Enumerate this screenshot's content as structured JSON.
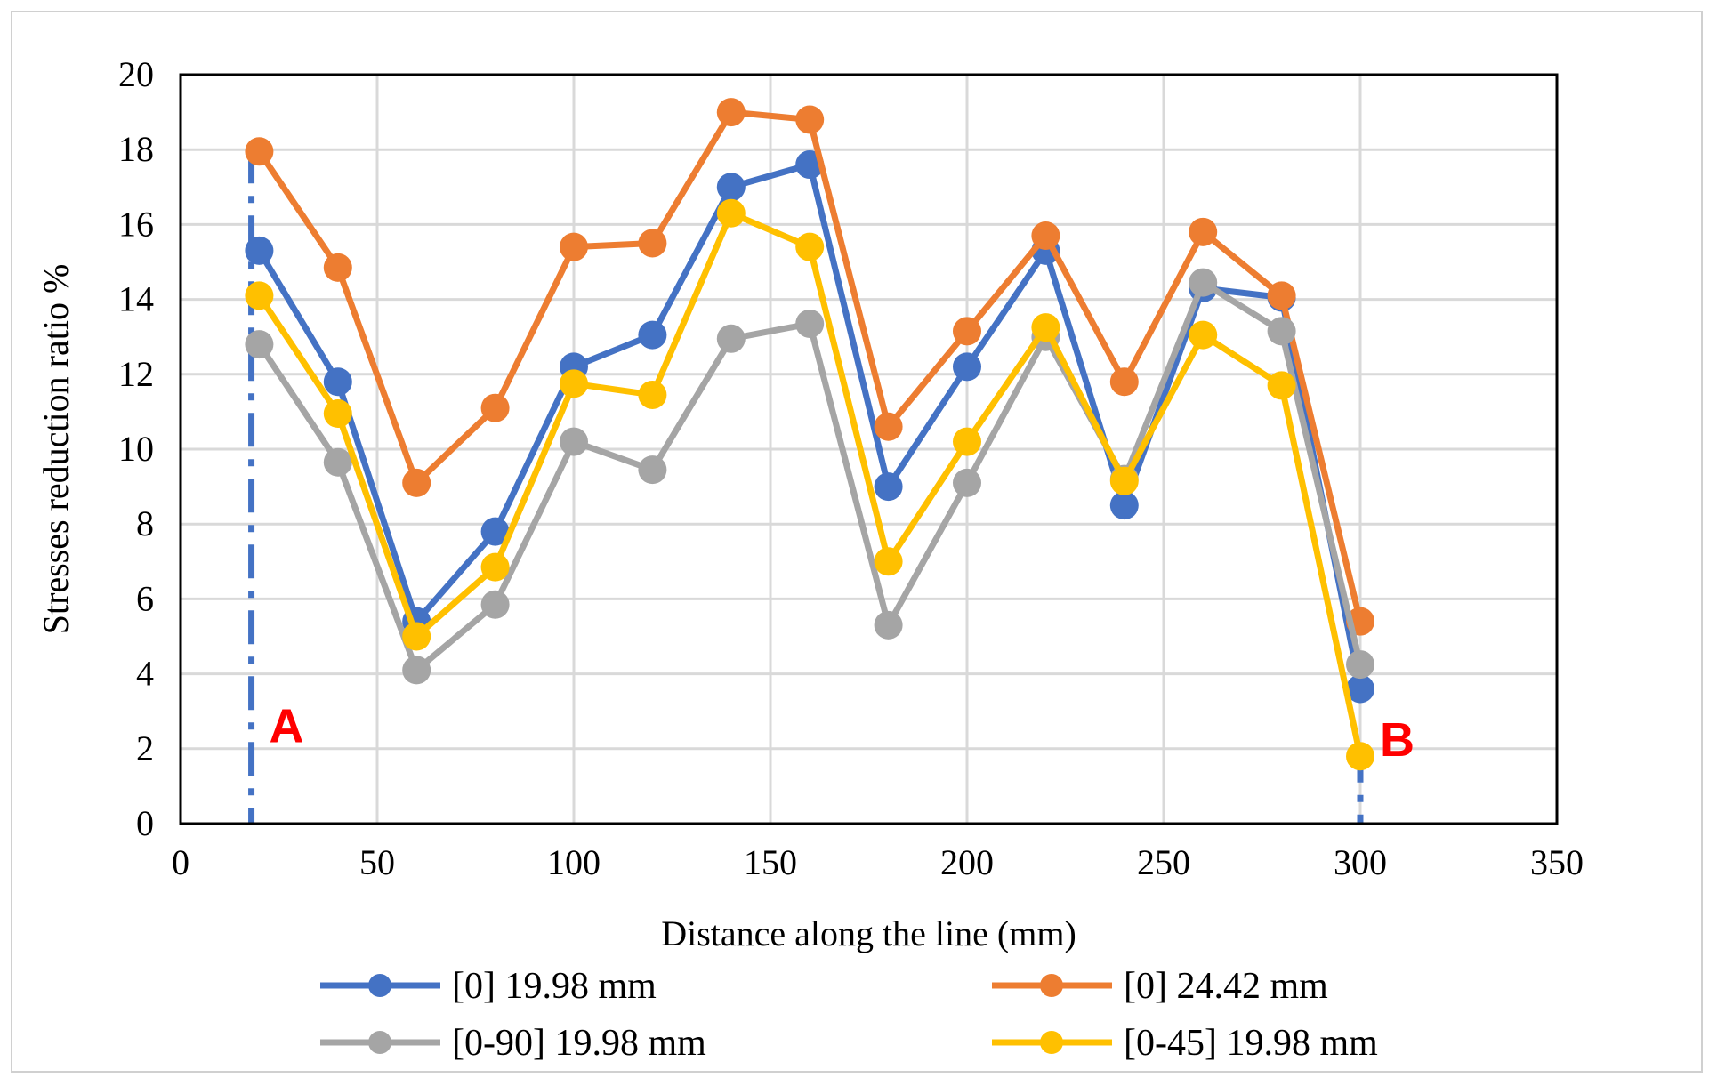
{
  "chart_data": {
    "type": "line",
    "title": "",
    "xlabel": "Distance along the line (mm)",
    "ylabel": "Stresses reduction ratio %",
    "xlim": [
      0,
      350
    ],
    "ylim": [
      0,
      20
    ],
    "xticks": [
      0,
      50,
      100,
      150,
      200,
      250,
      300,
      350
    ],
    "yticks": [
      0,
      2,
      4,
      6,
      8,
      10,
      12,
      14,
      16,
      18,
      20
    ],
    "grid": true,
    "legend_position": "bottom",
    "x": [
      20,
      40,
      60,
      80,
      100,
      120,
      140,
      160,
      180,
      200,
      220,
      240,
      260,
      280,
      300
    ],
    "series": [
      {
        "name": "[0] 19.98 mm",
        "color": "#4472C4",
        "values": [
          15.3,
          11.8,
          5.4,
          7.8,
          12.2,
          13.05,
          17.0,
          17.6,
          9.0,
          12.2,
          15.3,
          8.5,
          14.3,
          14.05,
          3.6
        ]
      },
      {
        "name": "[0] 24.42 mm",
        "color": "#ED7D31",
        "values": [
          17.95,
          14.85,
          9.1,
          11.1,
          15.4,
          15.5,
          19.0,
          18.8,
          10.6,
          13.15,
          15.7,
          11.8,
          15.8,
          14.1,
          5.4
        ]
      },
      {
        "name": "[0-90] 19.98 mm",
        "color": "#A5A5A5",
        "values": [
          12.8,
          9.65,
          4.1,
          5.85,
          10.2,
          9.45,
          12.95,
          13.35,
          5.3,
          9.1,
          13.0,
          9.2,
          14.45,
          13.15,
          4.25
        ]
      },
      {
        "name": "[0-45] 19.98 mm",
        "color": "#FFC000",
        "values": [
          14.1,
          10.95,
          5.0,
          6.85,
          11.75,
          11.45,
          16.3,
          15.4,
          7.0,
          10.2,
          13.25,
          9.15,
          13.05,
          11.7,
          1.8
        ]
      }
    ],
    "annotations": [
      {
        "label": "A",
        "x": 18,
        "color": "#FF0000",
        "line_color": "#4472C4",
        "line_style": "dash-dot",
        "line_top": 18
      },
      {
        "label": "B",
        "x": 300,
        "color": "#FF0000",
        "line_color": "#4472C4",
        "line_style": "dash-dot",
        "line_top": 2
      }
    ]
  }
}
